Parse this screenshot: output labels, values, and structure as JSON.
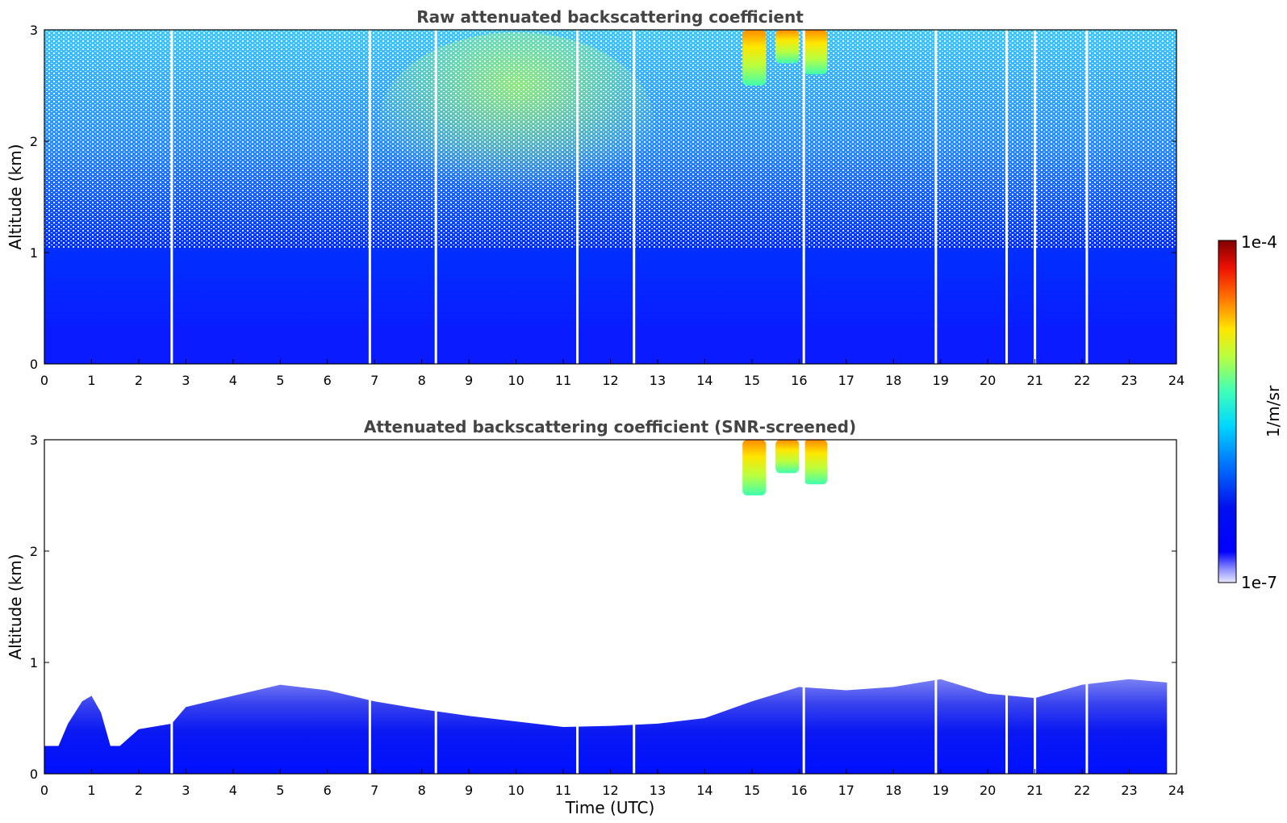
{
  "chart_data": [
    {
      "type": "heatmap",
      "title": "Raw attenuated backscattering coefficient",
      "xlabel": "",
      "ylabel": "Altitude (km)",
      "xlim": [
        0,
        24
      ],
      "ylim": [
        0,
        3
      ],
      "xticks": [
        "0",
        "1",
        "2",
        "3",
        "4",
        "5",
        "6",
        "7",
        "8",
        "9",
        "10",
        "11",
        "12",
        "13",
        "14",
        "15",
        "16",
        "17",
        "18",
        "19",
        "20",
        "21",
        "22",
        "23",
        "24"
      ],
      "yticks": [
        "0",
        "1",
        "2",
        "3"
      ],
      "colorscale": "jet, log",
      "value_range": [
        1e-07,
        0.0001
      ],
      "features": [
        {
          "time_start": 14.8,
          "time_end": 15.3,
          "alt_bottom": 2.5,
          "alt_top": 3.0,
          "level": "1e-5 to 5e-5"
        },
        {
          "time_start": 15.5,
          "time_end": 16.0,
          "alt_bottom": 2.7,
          "alt_top": 3.0,
          "level": "1e-5"
        },
        {
          "time_start": 16.1,
          "time_end": 16.6,
          "alt_bottom": 2.6,
          "alt_top": 3.0,
          "level": "5e-6"
        }
      ],
      "data_gaps_hours": [
        2.7,
        6.9,
        8.3,
        11.3,
        12.5,
        16.1,
        18.9,
        20.4,
        21.0,
        22.1
      ]
    },
    {
      "type": "heatmap",
      "title": "Attenuated backscattering coefficient (SNR-screened)",
      "xlabel": "Time (UTC)",
      "ylabel": "Altitude (km)",
      "xlim": [
        0,
        24
      ],
      "ylim": [
        0,
        3
      ],
      "xticks": [
        "0",
        "1",
        "2",
        "3",
        "4",
        "5",
        "6",
        "7",
        "8",
        "9",
        "10",
        "11",
        "12",
        "13",
        "14",
        "15",
        "16",
        "17",
        "18",
        "19",
        "20",
        "21",
        "22",
        "23",
        "24"
      ],
      "yticks": [
        "0",
        "1",
        "2",
        "3"
      ],
      "colorscale": "jet, log",
      "value_range": [
        1e-07,
        0.0001
      ],
      "boundary_layer_top_km": {
        "time": [
          0,
          0.3,
          0.5,
          0.8,
          1.0,
          1.2,
          1.4,
          1.6,
          2.0,
          2.7,
          3.0,
          4.0,
          5.0,
          6.0,
          7.0,
          8.0,
          9.0,
          10.0,
          11.0,
          12.0,
          13.0,
          14.0,
          15.0,
          16.0,
          17.0,
          18.0,
          19.0,
          20.0,
          21.0,
          22.0,
          23.0,
          23.8
        ],
        "altitude": [
          0.25,
          0.25,
          0.45,
          0.65,
          0.7,
          0.55,
          0.25,
          0.25,
          0.4,
          0.45,
          0.6,
          0.7,
          0.8,
          0.75,
          0.65,
          0.58,
          0.52,
          0.47,
          0.42,
          0.43,
          0.45,
          0.5,
          0.65,
          0.78,
          0.75,
          0.78,
          0.85,
          0.72,
          0.68,
          0.8,
          0.85,
          0.82
        ]
      },
      "features": [
        {
          "time_start": 14.8,
          "time_end": 15.3,
          "alt_bottom": 2.5,
          "alt_top": 3.0,
          "level": "1e-5 to 5e-5"
        },
        {
          "time_start": 15.5,
          "time_end": 16.0,
          "alt_bottom": 2.7,
          "alt_top": 3.0,
          "level": "1e-5"
        },
        {
          "time_start": 16.1,
          "time_end": 16.6,
          "alt_bottom": 2.6,
          "alt_top": 3.0,
          "level": "5e-6"
        }
      ]
    }
  ],
  "colorbar": {
    "label": "1/m/sr",
    "max_label": "1e-4",
    "min_label": "1e-7"
  }
}
